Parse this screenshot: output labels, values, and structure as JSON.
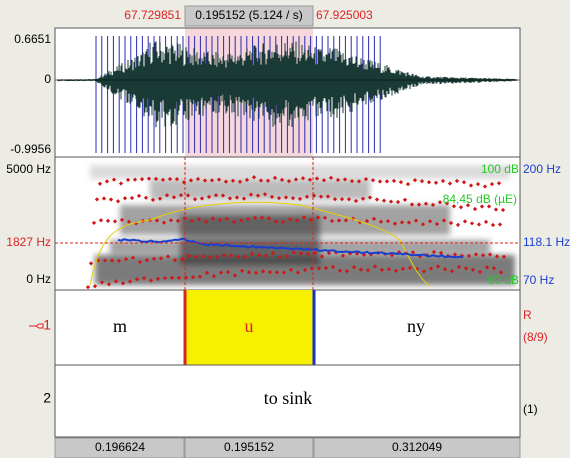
{
  "selection": {
    "start": "67.729851",
    "duration": "0.195152 (5.124 / s)",
    "end": "67.925003"
  },
  "waveform": {
    "max": "0.6651",
    "zero": "0",
    "min": "-0.9956"
  },
  "spectrogram": {
    "left": {
      "top": "5000 Hz",
      "cursor": "1827 Hz",
      "bottom": "0 Hz"
    },
    "right": {
      "intensity_top": "100 dB",
      "pitch_top": "200 Hz",
      "intensity_value": "84,45 dB (µE)",
      "pitch_value": "118.1 Hz",
      "intensity_bottom": "60 dB",
      "pitch_bottom": "70 Hz"
    }
  },
  "tiers": [
    {
      "number": "1",
      "intervals": [
        "m",
        "u",
        "ny"
      ],
      "side": [
        "R",
        "(8/9)"
      ]
    },
    {
      "number": "2",
      "intervals": [
        "to sink"
      ],
      "side": "(1)"
    }
  ],
  "durations": [
    "0.196624",
    "0.195152",
    "0.312049"
  ]
}
